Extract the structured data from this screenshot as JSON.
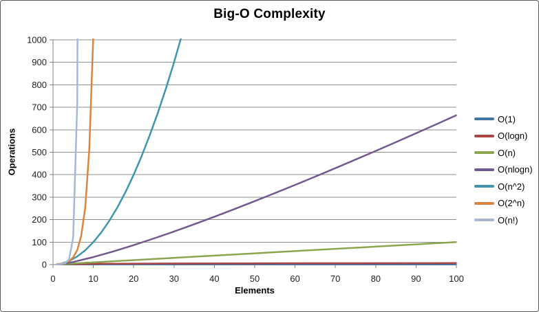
{
  "window": {
    "background": "#ffffff",
    "border_color": "#5a5a5a"
  },
  "chart_data": {
    "type": "line",
    "title": "Big-O Complexity",
    "xlabel": "Elements",
    "ylabel": "Operations",
    "xlim": [
      0,
      100
    ],
    "ylim": [
      0,
      1000
    ],
    "xticks": [
      0,
      10,
      20,
      30,
      40,
      50,
      60,
      70,
      80,
      90,
      100
    ],
    "yticks": [
      0,
      100,
      200,
      300,
      400,
      500,
      600,
      700,
      800,
      900,
      1000
    ],
    "grid": "horizontal",
    "gridline_color": "#8e8e8e",
    "axis_color": "#7f7f7f",
    "tick_label_color": "#1f1f1f",
    "legend_position": "right",
    "series": [
      {
        "name": "O(1)",
        "color": "#4572A7",
        "points": [
          [
            1,
            1
          ],
          [
            100,
            1
          ]
        ]
      },
      {
        "name": "O(logn)",
        "color": "#AA4643",
        "points": [
          [
            1,
            0
          ],
          [
            2,
            1
          ],
          [
            3,
            1.58
          ],
          [
            4,
            2
          ],
          [
            6,
            2.58
          ],
          [
            8,
            3
          ],
          [
            12,
            3.58
          ],
          [
            16,
            4
          ],
          [
            24,
            4.58
          ],
          [
            32,
            5
          ],
          [
            48,
            5.58
          ],
          [
            64,
            6
          ],
          [
            100,
            6.64
          ]
        ]
      },
      {
        "name": "O(n)",
        "color": "#89A54E",
        "points": [
          [
            1,
            1
          ],
          [
            100,
            100
          ]
        ]
      },
      {
        "name": "O(nlogn)",
        "color": "#71588F",
        "points": [
          [
            1,
            0
          ],
          [
            5,
            11.6
          ],
          [
            10,
            33.2
          ],
          [
            15,
            58.6
          ],
          [
            20,
            86.4
          ],
          [
            25,
            116.1
          ],
          [
            30,
            147.2
          ],
          [
            35,
            179.5
          ],
          [
            40,
            212.9
          ],
          [
            45,
            247.1
          ],
          [
            50,
            282.2
          ],
          [
            55,
            318.0
          ],
          [
            60,
            354.4
          ],
          [
            65,
            391.5
          ],
          [
            70,
            429.0
          ],
          [
            75,
            467.2
          ],
          [
            80,
            505.8
          ],
          [
            85,
            544.8
          ],
          [
            90,
            584.3
          ],
          [
            95,
            624.1
          ],
          [
            100,
            664.4
          ]
        ]
      },
      {
        "name": "O(n^2)",
        "color": "#3D96AE",
        "points": [
          [
            1,
            1
          ],
          [
            2,
            4
          ],
          [
            4,
            16
          ],
          [
            6,
            36
          ],
          [
            8,
            64
          ],
          [
            10,
            100
          ],
          [
            12,
            144
          ],
          [
            14,
            196
          ],
          [
            16,
            256
          ],
          [
            18,
            324
          ],
          [
            20,
            400
          ],
          [
            22,
            484
          ],
          [
            24,
            576
          ],
          [
            26,
            676
          ],
          [
            28,
            784
          ],
          [
            30,
            900
          ],
          [
            32,
            1024
          ],
          [
            33,
            1089
          ]
        ]
      },
      {
        "name": "O(2^n)",
        "color": "#DB843D",
        "points": [
          [
            1,
            2
          ],
          [
            2,
            4
          ],
          [
            3,
            8
          ],
          [
            4,
            16
          ],
          [
            5,
            32
          ],
          [
            6,
            64
          ],
          [
            7,
            128
          ],
          [
            8,
            256
          ],
          [
            9,
            512
          ],
          [
            10,
            1024
          ],
          [
            11,
            2048
          ]
        ]
      },
      {
        "name": "O(n!)",
        "color": "#A5B8DA",
        "points": [
          [
            1,
            1
          ],
          [
            2,
            2
          ],
          [
            3,
            6
          ],
          [
            4,
            24
          ],
          [
            5,
            120
          ],
          [
            6,
            720
          ],
          [
            7,
            5040
          ]
        ]
      }
    ]
  }
}
